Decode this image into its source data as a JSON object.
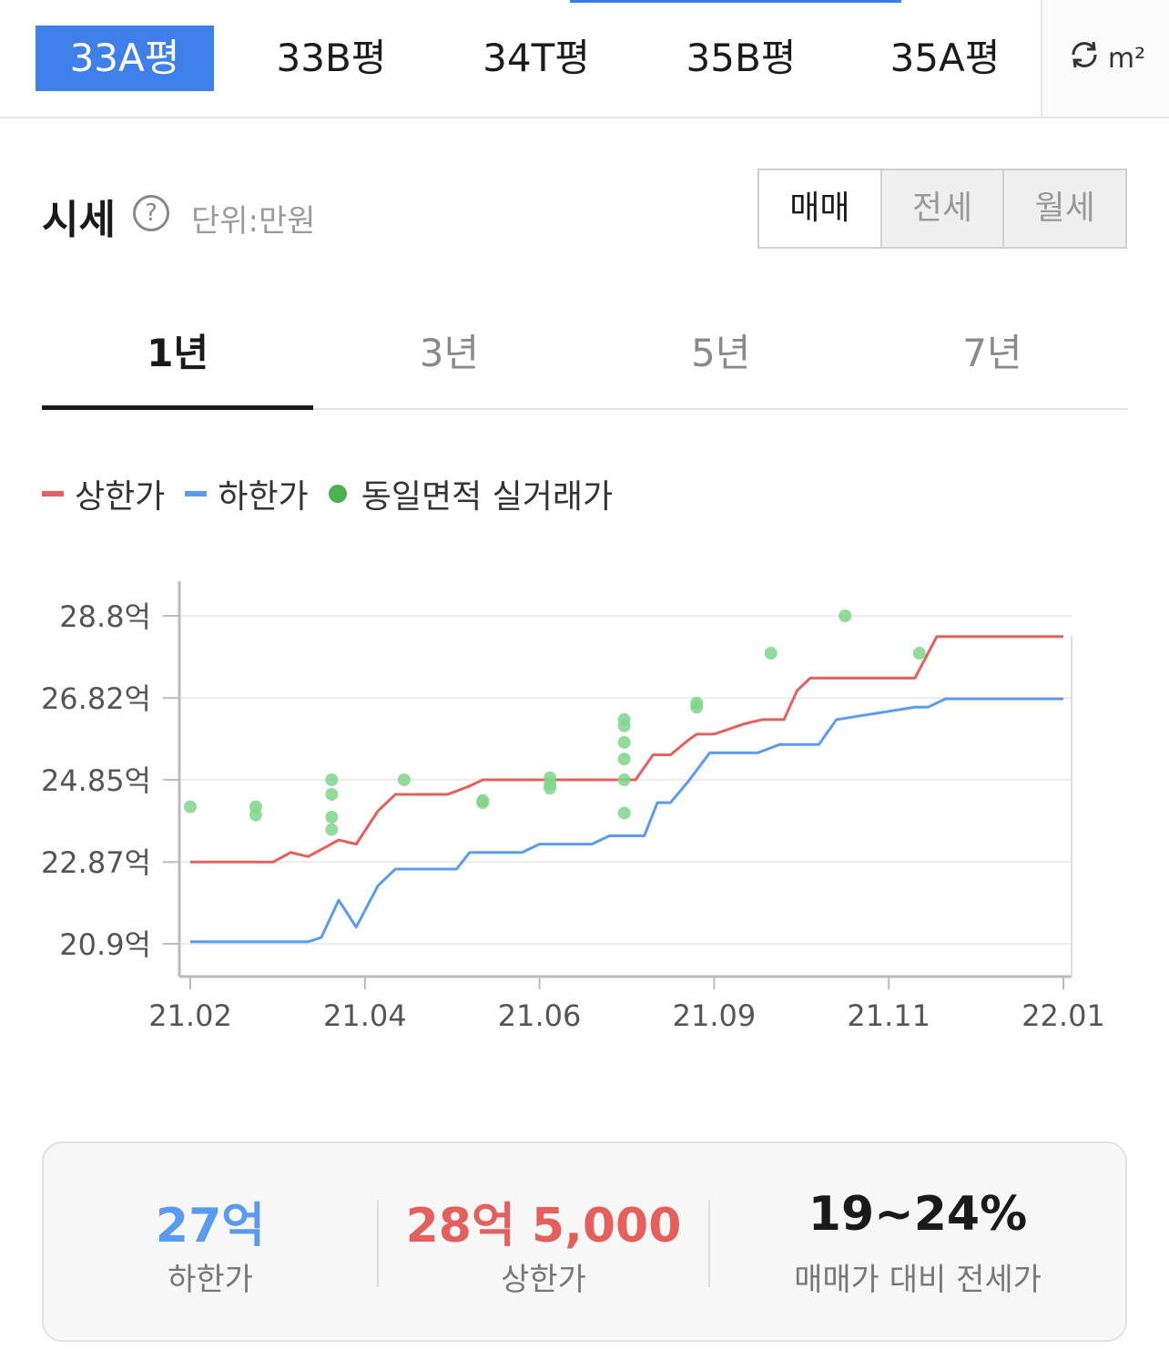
{
  "area_tabs": [
    {
      "label": "33A평",
      "active": true
    },
    {
      "label": "33B평",
      "active": false
    },
    {
      "label": "34T평",
      "active": false
    },
    {
      "label": "35B평",
      "active": false
    },
    {
      "label": "35A평",
      "active": false
    }
  ],
  "unit_toggle": {
    "label": "m²",
    "icon": "refresh-icon"
  },
  "header": {
    "title": "시세",
    "unit_label": "단위:만원",
    "help_icon": "question-icon"
  },
  "trade_tabs": [
    {
      "label": "매매",
      "active": true
    },
    {
      "label": "전세",
      "active": false
    },
    {
      "label": "월세",
      "active": false
    }
  ],
  "period_tabs": [
    {
      "label": "1년",
      "active": true
    },
    {
      "label": "3년",
      "active": false
    },
    {
      "label": "5년",
      "active": false
    },
    {
      "label": "7년",
      "active": false
    }
  ],
  "legend": {
    "upper_label": "상한가",
    "lower_label": "하한가",
    "deal_label": "동일면적 실거래가"
  },
  "colors": {
    "accent": "#3f7fe9",
    "upper": "#e5605c",
    "lower": "#5b9bef",
    "deal": "#4caf50",
    "deal_light": "#7fd68a"
  },
  "chart_data": {
    "type": "line",
    "y_ticks": [
      "28.8억",
      "26.82억",
      "24.85억",
      "22.87억",
      "20.9억"
    ],
    "y_tick_values": [
      28.8,
      26.82,
      24.85,
      22.87,
      20.9
    ],
    "x_ticks": [
      "21.02",
      "21.04",
      "21.06",
      "21.09",
      "21.11",
      "22.01"
    ],
    "x_tick_values": [
      0,
      2,
      4,
      6,
      8,
      10
    ],
    "ylim": [
      20.1,
      29.6
    ],
    "xlim": [
      0,
      10
    ],
    "grid": true,
    "legend_position": "top-left",
    "series": [
      {
        "name": "상한가",
        "x": [
          0,
          0.95,
          1.15,
          1.35,
          1.7,
          1.9,
          2.15,
          2.35,
          2.95,
          3.2,
          3.35,
          5.1,
          5.3,
          5.5,
          5.7,
          5.8,
          6.0,
          6.35,
          6.55,
          6.8,
          6.95,
          7.1,
          7.3,
          8.3,
          8.55,
          10.0
        ],
        "values": [
          22.87,
          22.87,
          23.1,
          23.0,
          23.4,
          23.3,
          24.1,
          24.5,
          24.5,
          24.7,
          24.85,
          24.85,
          25.45,
          25.45,
          25.8,
          25.95,
          25.95,
          26.2,
          26.3,
          26.3,
          27.0,
          27.3,
          27.3,
          27.3,
          28.3,
          28.3
        ]
      },
      {
        "name": "하한가",
        "x": [
          0,
          1.35,
          1.5,
          1.7,
          1.9,
          2.15,
          2.35,
          3.05,
          3.2,
          3.8,
          4.0,
          4.6,
          4.8,
          5.2,
          5.35,
          5.5,
          5.7,
          5.95,
          6.5,
          6.75,
          7.2,
          7.4,
          8.3,
          8.45,
          8.65,
          10.0
        ],
        "values": [
          20.95,
          20.95,
          21.05,
          21.95,
          21.3,
          22.3,
          22.7,
          22.7,
          23.1,
          23.1,
          23.3,
          23.3,
          23.5,
          23.5,
          24.3,
          24.3,
          24.8,
          25.5,
          25.5,
          25.7,
          25.7,
          26.3,
          26.6,
          26.6,
          26.8,
          26.8
        ]
      }
    ],
    "deals": {
      "name": "동일면적 실거래가",
      "x": [
        0.0,
        0.75,
        0.75,
        1.62,
        1.62,
        1.62,
        1.62,
        2.45,
        3.35,
        3.35,
        4.12,
        4.12,
        4.12,
        4.97,
        4.97,
        4.97,
        4.97,
        4.97,
        4.97,
        5.8,
        5.8,
        6.65,
        7.5,
        8.35
      ],
      "values": [
        24.2,
        24.2,
        24.0,
        24.85,
        24.5,
        23.95,
        23.65,
        24.85,
        24.3,
        24.35,
        24.9,
        24.75,
        24.65,
        26.3,
        26.15,
        25.75,
        25.35,
        24.85,
        24.05,
        26.7,
        26.6,
        27.9,
        28.8,
        27.9
      ]
    }
  },
  "summary": [
    {
      "value": "27억",
      "label": "하한가",
      "color": "#5b9bef"
    },
    {
      "value": "28억 5,000",
      "label": "상한가",
      "color": "#e5605c"
    },
    {
      "value": "19~24%",
      "label": "매매가 대비 전세가",
      "color": "#1a1a1a"
    }
  ]
}
